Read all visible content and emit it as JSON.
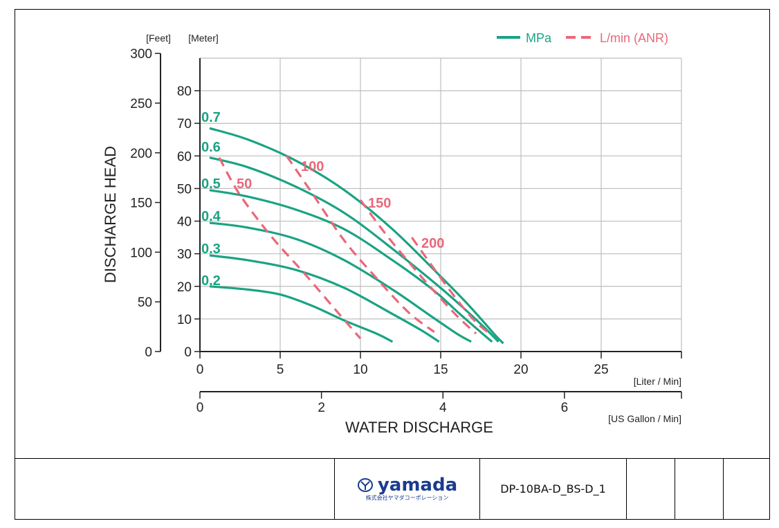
{
  "chart_data": {
    "type": "line",
    "xlabel": "WATER DISCHARGE",
    "ylabel": "DISCHARGE HEAD",
    "x_unit_primary": "[Liter / Min]",
    "x_unit_secondary": "[US Gallon / Min]",
    "y_unit_feet": "[Feet]",
    "y_unit_meter": "[Meter]",
    "xlim": [
      0,
      30
    ],
    "ylim": [
      0,
      90
    ],
    "grid": true,
    "x_ticks": [
      0,
      5,
      10,
      15,
      20,
      25
    ],
    "x_ticks_gallon": [
      0,
      2,
      4,
      6
    ],
    "y_ticks_meter": [
      0,
      10,
      20,
      30,
      40,
      50,
      60,
      70,
      80
    ],
    "y_ticks_feet": [
      0,
      50,
      100,
      150,
      200,
      250,
      300
    ],
    "legend": {
      "position": "top-right",
      "items": [
        {
          "label": "MPa",
          "style": "solid",
          "color": "#1aa383"
        },
        {
          "label": "L/min (ANR)",
          "style": "dashed",
          "color": "#e8687a"
        }
      ]
    },
    "series": [
      {
        "name": "0.7",
        "style": "solid",
        "x": [
          0.6,
          3,
          6,
          9,
          12,
          15,
          16.5,
          17.6,
          18.4,
          18.9
        ],
        "y": [
          68.5,
          65,
          58.5,
          49.5,
          37.5,
          23,
          15.5,
          9.5,
          5,
          2.5
        ]
      },
      {
        "name": "0.6",
        "style": "solid",
        "x": [
          0.6,
          3,
          6,
          9,
          12,
          15,
          16.5,
          17.7,
          18.6
        ],
        "y": [
          59.5,
          56.5,
          50.5,
          42.5,
          31.5,
          19.5,
          13,
          7.5,
          3
        ]
      },
      {
        "name": "0.5",
        "style": "solid",
        "x": [
          0.6,
          3,
          6,
          9,
          12,
          14.5,
          16.2,
          17.6,
          18.2
        ],
        "y": [
          49.5,
          47.5,
          43.5,
          37.5,
          28,
          19,
          11.5,
          5.5,
          3
        ]
      },
      {
        "name": "0.4",
        "style": "solid",
        "x": [
          0.6,
          3,
          6,
          9,
          12,
          14.5,
          16,
          16.9
        ],
        "y": [
          39.5,
          38,
          34.5,
          28,
          19,
          10.5,
          5.5,
          3
        ]
      },
      {
        "name": "0.3",
        "style": "solid",
        "x": [
          0.6,
          3,
          6,
          9,
          12,
          13.8,
          14.9
        ],
        "y": [
          29.5,
          28,
          25,
          19.5,
          11.5,
          6.5,
          3
        ]
      },
      {
        "name": "0.2",
        "style": "solid",
        "x": [
          0.6,
          3,
          5,
          7,
          9,
          11,
          12
        ],
        "y": [
          20,
          19,
          17.5,
          14,
          9.5,
          5.5,
          3
        ]
      },
      {
        "name": "50",
        "style": "dashed",
        "x": [
          1.2,
          2.5,
          4.5,
          6.5,
          8.5,
          10
        ],
        "y": [
          59.5,
          48,
          35,
          24,
          12.5,
          4
        ]
      },
      {
        "name": "100",
        "style": "dashed",
        "x": [
          5.4,
          7,
          9,
          11,
          13,
          14.6
        ],
        "y": [
          60,
          48.5,
          34,
          22.5,
          12,
          6
        ]
      },
      {
        "name": "150",
        "style": "dashed",
        "x": [
          10,
          11.5,
          13,
          14.5,
          16,
          17.2
        ],
        "y": [
          46.5,
          36.5,
          27.5,
          19,
          11,
          5.5
        ]
      },
      {
        "name": "200",
        "style": "dashed",
        "x": [
          13.2,
          14.5,
          16,
          17.2,
          18.2
        ],
        "y": [
          35,
          26,
          16,
          9,
          5
        ]
      }
    ],
    "series_labels": [
      {
        "text": "0.7",
        "color": "#1aa383"
      },
      {
        "text": "0.6",
        "color": "#1aa383"
      },
      {
        "text": "0.5",
        "color": "#1aa383"
      },
      {
        "text": "0.4",
        "color": "#1aa383"
      },
      {
        "text": "0.3",
        "color": "#1aa383"
      },
      {
        "text": "0.2",
        "color": "#1aa383"
      },
      {
        "text": "50",
        "color": "#e8687a"
      },
      {
        "text": "100",
        "color": "#e8687a"
      },
      {
        "text": "150",
        "color": "#e8687a"
      },
      {
        "text": "200",
        "color": "#e8687a"
      }
    ]
  },
  "footer": {
    "logo_name": "yamada",
    "logo_sub": "株式会社ヤマダコーポレーション",
    "document_code": "DP-10BA-D_BS-D_1"
  },
  "colors": {
    "green": "#1aa383",
    "pink": "#e8687a",
    "grid": "#bdbdbd",
    "axis": "#222222",
    "logo_blue": "#1a3b8f"
  }
}
